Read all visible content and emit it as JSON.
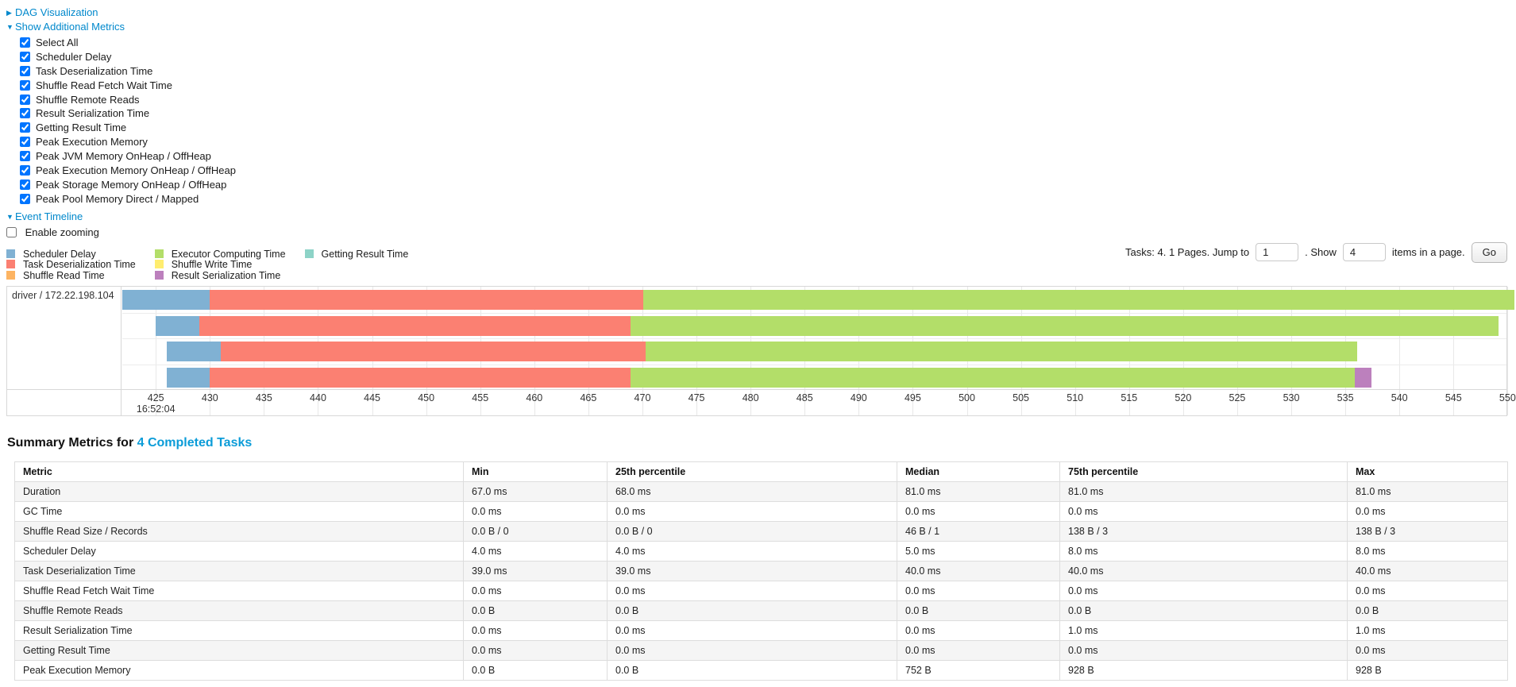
{
  "colors": {
    "link_blue": "#0088cc",
    "heading_link_blue": "#0b9cd8",
    "grid_gray": "#e8e8e8"
  },
  "sections": {
    "dag": {
      "arrow_icon": "▶",
      "label": "DAG Visualization"
    },
    "metrics": {
      "arrow_icon": "▼",
      "label": "Show Additional Metrics"
    },
    "event_timeline": {
      "arrow_icon": "▼",
      "label": "Event Timeline"
    }
  },
  "metrics_panel": {
    "items": [
      {
        "label": "Select All",
        "checked": true
      },
      {
        "label": "Scheduler Delay",
        "checked": true
      },
      {
        "label": "Task Deserialization Time",
        "checked": true
      },
      {
        "label": "Shuffle Read Fetch Wait Time",
        "checked": true
      },
      {
        "label": "Shuffle Remote Reads",
        "checked": true
      },
      {
        "label": "Result Serialization Time",
        "checked": true
      },
      {
        "label": "Getting Result Time",
        "checked": true
      },
      {
        "label": "Peak Execution Memory",
        "checked": true
      },
      {
        "label": "Peak JVM Memory OnHeap / OffHeap",
        "checked": true
      },
      {
        "label": "Peak Execution Memory OnHeap / OffHeap",
        "checked": true
      },
      {
        "label": "Peak Storage Memory OnHeap / OffHeap",
        "checked": true
      },
      {
        "label": "Peak Pool Memory Direct / Mapped",
        "checked": true
      }
    ]
  },
  "enable_zooming": {
    "label": "Enable zooming",
    "checked": false
  },
  "pagination": {
    "prefix": "Tasks: 4. 1 Pages. Jump to",
    "jump_value": "1",
    "mid": ". Show",
    "show_value": "4",
    "suffix": "items in a page.",
    "go_label": "Go"
  },
  "timeline": {
    "legend_columns": [
      [
        {
          "key": "scheduler-delay",
          "label": "Scheduler Delay",
          "color": "#80B1D3"
        },
        {
          "key": "task-deserialization-time",
          "label": "Task Deserialization Time",
          "color": "#FB8072"
        },
        {
          "key": "shuffle-read-time",
          "label": "Shuffle Read Time",
          "color": "#FDB462"
        }
      ],
      [
        {
          "key": "executor-computing-time",
          "label": "Executor Computing Time",
          "color": "#B3DE69"
        },
        {
          "key": "shuffle-write-time",
          "label": "Shuffle Write Time",
          "color": "#FFED6F"
        },
        {
          "key": "result-serialization-time",
          "label": "Result Serialization Time",
          "color": "#BC80BD"
        }
      ],
      [
        {
          "key": "getting-result-time",
          "label": "Getting Result Time",
          "color": "#8DD3C7"
        }
      ]
    ],
    "chart_data": {
      "type": "timeline-gantt",
      "row_label": "driver / 172.22.198.104",
      "axis": {
        "range_start": 421.9,
        "range_end": 549.9,
        "ticks": [
          425,
          430,
          435,
          440,
          445,
          450,
          455,
          460,
          465,
          470,
          475,
          480,
          485,
          490,
          495,
          500,
          505,
          510,
          515,
          520,
          525,
          530,
          535,
          540,
          545,
          550
        ],
        "time_label_tick": 425,
        "start_time_label": "16:52:04"
      },
      "colors": {
        "scheduler-delay": "#80B1D3",
        "task-deserialization": "#FB8072",
        "shuffle-read": "#FDB462",
        "executor-computing": "#B3DE69",
        "shuffle-write": "#FFED6F",
        "result-serialization": "#BC80BD",
        "getting-result": "#8DD3C7"
      },
      "tasks": [
        {
          "segments": [
            {
              "name": "scheduler-delay",
              "start": 421.9,
              "end": 430.0
            },
            {
              "name": "task-deserialization",
              "start": 430.0,
              "end": 470.1
            },
            {
              "name": "executor-computing",
              "start": 470.1,
              "end": 550.6
            }
          ]
        },
        {
          "segments": [
            {
              "name": "scheduler-delay",
              "start": 425.0,
              "end": 429.0
            },
            {
              "name": "task-deserialization",
              "start": 429.0,
              "end": 468.9
            },
            {
              "name": "executor-computing",
              "start": 468.9,
              "end": 549.2
            }
          ]
        },
        {
          "segments": [
            {
              "name": "scheduler-delay",
              "start": 426.0,
              "end": 431.0
            },
            {
              "name": "task-deserialization",
              "start": 431.0,
              "end": 470.3
            },
            {
              "name": "executor-computing",
              "start": 470.3,
              "end": 536.1
            }
          ]
        },
        {
          "segments": [
            {
              "name": "scheduler-delay",
              "start": 426.0,
              "end": 430.0
            },
            {
              "name": "task-deserialization",
              "start": 430.0,
              "end": 468.9
            },
            {
              "name": "executor-computing",
              "start": 468.9,
              "end": 535.9
            },
            {
              "name": "result-serialization",
              "start": 535.9,
              "end": 537.4
            }
          ]
        }
      ]
    }
  },
  "summary": {
    "heading_prefix": "Summary Metrics for",
    "heading_link": "4 Completed Tasks",
    "table": {
      "headers": [
        "Metric",
        "Min",
        "25th percentile",
        "Median",
        "75th percentile",
        "Max"
      ],
      "rows": [
        [
          "Duration",
          "67.0 ms",
          "68.0 ms",
          "81.0 ms",
          "81.0 ms",
          "81.0 ms"
        ],
        [
          "GC Time",
          "0.0 ms",
          "0.0 ms",
          "0.0 ms",
          "0.0 ms",
          "0.0 ms"
        ],
        [
          "Shuffle Read Size / Records",
          "0.0 B / 0",
          "0.0 B / 0",
          "46 B / 1",
          "138 B / 3",
          "138 B / 3"
        ],
        [
          "Scheduler Delay",
          "4.0 ms",
          "4.0 ms",
          "5.0 ms",
          "8.0 ms",
          "8.0 ms"
        ],
        [
          "Task Deserialization Time",
          "39.0 ms",
          "39.0 ms",
          "40.0 ms",
          "40.0 ms",
          "40.0 ms"
        ],
        [
          "Shuffle Read Fetch Wait Time",
          "0.0 ms",
          "0.0 ms",
          "0.0 ms",
          "0.0 ms",
          "0.0 ms"
        ],
        [
          "Shuffle Remote Reads",
          "0.0 B",
          "0.0 B",
          "0.0 B",
          "0.0 B",
          "0.0 B"
        ],
        [
          "Result Serialization Time",
          "0.0 ms",
          "0.0 ms",
          "0.0 ms",
          "1.0 ms",
          "1.0 ms"
        ],
        [
          "Getting Result Time",
          "0.0 ms",
          "0.0 ms",
          "0.0 ms",
          "0.0 ms",
          "0.0 ms"
        ],
        [
          "Peak Execution Memory",
          "0.0 B",
          "0.0 B",
          "752 B",
          "928 B",
          "928 B"
        ]
      ]
    }
  }
}
